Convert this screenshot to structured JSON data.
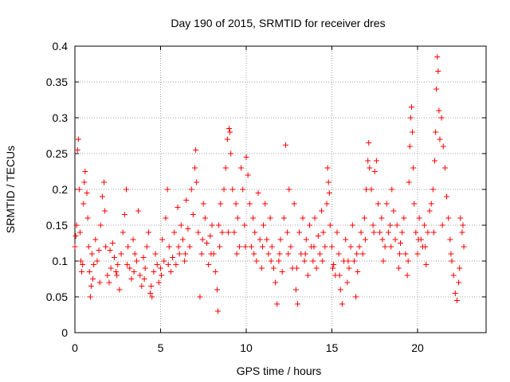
{
  "chart_data": {
    "type": "scatter",
    "title": "Day 190 of 2015, SRMTID for receiver dres",
    "xlabel": "GPS time / hours",
    "ylabel": "SRMTID / TECUs",
    "xlim": [
      0,
      24
    ],
    "ylim": [
      0,
      0.4
    ],
    "xticks": [
      0,
      5,
      10,
      15,
      20
    ],
    "xtick_labels": [
      "0",
      "5",
      "10",
      "15",
      "20"
    ],
    "yticks": [
      0,
      0.05,
      0.1,
      0.15,
      0.2,
      0.25,
      0.3,
      0.35,
      0.4
    ],
    "ytick_labels": [
      "0",
      "0.05",
      "0.1",
      "0.15",
      "0.2",
      "0.25",
      "0.3",
      "0.35",
      "0.4"
    ],
    "grid": true,
    "marker": "+",
    "color": "#ff0000",
    "series": [
      {
        "name": "SRMTID",
        "points": [
          [
            0.0,
            0.12
          ],
          [
            0.1,
            0.15
          ],
          [
            0.15,
            0.255
          ],
          [
            0.2,
            0.27
          ],
          [
            0.25,
            0.2
          ],
          [
            0.3,
            0.14
          ],
          [
            0.35,
            0.1
          ],
          [
            0.4,
            0.085
          ],
          [
            0.5,
            0.18
          ],
          [
            0.55,
            0.21
          ],
          [
            0.6,
            0.225
          ],
          [
            0.7,
            0.195
          ],
          [
            0.75,
            0.16
          ],
          [
            0.8,
            0.12
          ],
          [
            0.85,
            0.085
          ],
          [
            0.9,
            0.05
          ],
          [
            0.95,
            0.065
          ],
          [
            1.0,
            0.11
          ],
          [
            1.1,
            0.095
          ],
          [
            1.2,
            0.13
          ],
          [
            1.3,
            0.1
          ],
          [
            1.4,
            0.115
          ],
          [
            1.5,
            0.15
          ],
          [
            1.6,
            0.19
          ],
          [
            1.7,
            0.21
          ],
          [
            1.75,
            0.17
          ],
          [
            1.8,
            0.12
          ],
          [
            1.9,
            0.08
          ],
          [
            2.0,
            0.07
          ],
          [
            2.1,
            0.09
          ],
          [
            2.2,
            0.125
          ],
          [
            2.3,
            0.105
          ],
          [
            2.4,
            0.085
          ],
          [
            2.5,
            0.095
          ],
          [
            2.6,
            0.06
          ],
          [
            2.7,
            0.11
          ],
          [
            2.8,
            0.14
          ],
          [
            2.9,
            0.165
          ],
          [
            3.0,
            0.2
          ],
          [
            3.1,
            0.12
          ],
          [
            3.2,
            0.09
          ],
          [
            3.3,
            0.075
          ],
          [
            3.4,
            0.13
          ],
          [
            3.5,
            0.11
          ],
          [
            3.6,
            0.1
          ],
          [
            3.7,
            0.17
          ],
          [
            3.8,
            0.08
          ],
          [
            3.9,
            0.065
          ],
          [
            4.0,
            0.105
          ],
          [
            4.1,
            0.09
          ],
          [
            4.2,
            0.12
          ],
          [
            4.3,
            0.14
          ],
          [
            4.4,
            0.055
          ],
          [
            4.5,
            0.05
          ],
          [
            4.6,
            0.085
          ],
          [
            4.7,
            0.11
          ],
          [
            4.8,
            0.095
          ],
          [
            4.9,
            0.07
          ],
          [
            5.0,
            0.09
          ],
          [
            5.1,
            0.13
          ],
          [
            5.2,
            0.1
          ],
          [
            5.3,
            0.16
          ],
          [
            5.4,
            0.2
          ],
          [
            5.5,
            0.12
          ],
          [
            5.6,
            0.085
          ],
          [
            5.7,
            0.105
          ],
          [
            5.8,
            0.14
          ],
          [
            5.9,
            0.095
          ],
          [
            6.0,
            0.175
          ],
          [
            6.1,
            0.11
          ],
          [
            6.2,
            0.15
          ],
          [
            6.3,
            0.13
          ],
          [
            6.4,
            0.1
          ],
          [
            6.5,
            0.185
          ],
          [
            6.6,
            0.145
          ],
          [
            6.7,
            0.12
          ],
          [
            6.8,
            0.2
          ],
          [
            6.9,
            0.165
          ],
          [
            7.0,
            0.23
          ],
          [
            7.05,
            0.255
          ],
          [
            7.1,
            0.21
          ],
          [
            7.2,
            0.14
          ],
          [
            7.3,
            0.05
          ],
          [
            7.4,
            0.11
          ],
          [
            7.5,
            0.18
          ],
          [
            7.6,
            0.16
          ],
          [
            7.7,
            0.125
          ],
          [
            7.8,
            0.095
          ],
          [
            7.9,
            0.135
          ],
          [
            8.0,
            0.15
          ],
          [
            8.1,
            0.11
          ],
          [
            8.2,
            0.085
          ],
          [
            8.3,
            0.06
          ],
          [
            8.35,
            0.03
          ],
          [
            8.4,
            0.15
          ],
          [
            8.5,
            0.18
          ],
          [
            8.6,
            0.14
          ],
          [
            8.7,
            0.2
          ],
          [
            8.8,
            0.23
          ],
          [
            8.9,
            0.27
          ],
          [
            9.0,
            0.285
          ],
          [
            9.05,
            0.28
          ],
          [
            9.1,
            0.25
          ],
          [
            9.2,
            0.2
          ],
          [
            9.3,
            0.14
          ],
          [
            9.4,
            0.18
          ],
          [
            9.5,
            0.16
          ],
          [
            9.6,
            0.12
          ],
          [
            9.7,
            0.23
          ],
          [
            9.8,
            0.2
          ],
          [
            9.9,
            0.15
          ],
          [
            10.0,
            0.245
          ],
          [
            10.1,
            0.22
          ],
          [
            10.2,
            0.18
          ],
          [
            10.3,
            0.12
          ],
          [
            10.4,
            0.16
          ],
          [
            10.5,
            0.14
          ],
          [
            10.6,
            0.1
          ],
          [
            10.7,
            0.195
          ],
          [
            10.8,
            0.13
          ],
          [
            10.9,
            0.09
          ],
          [
            11.0,
            0.15
          ],
          [
            11.1,
            0.18
          ],
          [
            11.2,
            0.13
          ],
          [
            11.3,
            0.11
          ],
          [
            11.4,
            0.16
          ],
          [
            11.5,
            0.12
          ],
          [
            11.6,
            0.09
          ],
          [
            11.7,
            0.07
          ],
          [
            11.8,
            0.04
          ],
          [
            11.9,
            0.1
          ],
          [
            12.0,
            0.13
          ],
          [
            12.1,
            0.085
          ],
          [
            12.2,
            0.16
          ],
          [
            12.3,
            0.262
          ],
          [
            12.4,
            0.14
          ],
          [
            12.5,
            0.2
          ],
          [
            12.6,
            0.12
          ],
          [
            12.7,
            0.09
          ],
          [
            12.8,
            0.18
          ],
          [
            12.9,
            0.06
          ],
          [
            13.0,
            0.04
          ],
          [
            13.1,
            0.14
          ],
          [
            13.2,
            0.11
          ],
          [
            13.3,
            0.16
          ],
          [
            13.4,
            0.1
          ],
          [
            13.5,
            0.13
          ],
          [
            13.6,
            0.08
          ],
          [
            13.7,
            0.15
          ],
          [
            13.8,
            0.12
          ],
          [
            13.9,
            0.1
          ],
          [
            14.0,
            0.16
          ],
          [
            14.1,
            0.09
          ],
          [
            14.2,
            0.135
          ],
          [
            14.3,
            0.11
          ],
          [
            14.4,
            0.17
          ],
          [
            14.5,
            0.14
          ],
          [
            14.6,
            0.12
          ],
          [
            14.7,
            0.18
          ],
          [
            14.75,
            0.23
          ],
          [
            14.8,
            0.21
          ],
          [
            14.85,
            0.195
          ],
          [
            14.9,
            0.15
          ],
          [
            15.0,
            0.12
          ],
          [
            15.1,
            0.095
          ],
          [
            15.2,
            0.08
          ],
          [
            15.3,
            0.14
          ],
          [
            15.4,
            0.11
          ],
          [
            15.5,
            0.06
          ],
          [
            15.6,
            0.04
          ],
          [
            15.7,
            0.1
          ],
          [
            15.8,
            0.13
          ],
          [
            15.9,
            0.07
          ],
          [
            16.0,
            0.09
          ],
          [
            16.1,
            0.12
          ],
          [
            16.2,
            0.15
          ],
          [
            16.3,
            0.1
          ],
          [
            16.4,
            0.05
          ],
          [
            16.5,
            0.085
          ],
          [
            16.6,
            0.12
          ],
          [
            16.7,
            0.14
          ],
          [
            16.8,
            0.11
          ],
          [
            16.9,
            0.16
          ],
          [
            17.0,
            0.2
          ],
          [
            17.1,
            0.24
          ],
          [
            17.15,
            0.265
          ],
          [
            17.2,
            0.23
          ],
          [
            17.3,
            0.2
          ],
          [
            17.4,
            0.15
          ],
          [
            17.5,
            0.225
          ],
          [
            17.6,
            0.24
          ],
          [
            17.7,
            0.18
          ],
          [
            17.8,
            0.14
          ],
          [
            17.9,
            0.16
          ],
          [
            18.0,
            0.1
          ],
          [
            18.1,
            0.12
          ],
          [
            18.2,
            0.18
          ],
          [
            18.3,
            0.14
          ],
          [
            18.4,
            0.15
          ],
          [
            18.5,
            0.2
          ],
          [
            18.6,
            0.17
          ],
          [
            18.7,
            0.13
          ],
          [
            18.8,
            0.15
          ],
          [
            18.9,
            0.09
          ],
          [
            19.0,
            0.125
          ],
          [
            19.1,
            0.14
          ],
          [
            19.2,
            0.16
          ],
          [
            19.3,
            0.11
          ],
          [
            19.4,
            0.08
          ],
          [
            19.5,
            0.21
          ],
          [
            19.55,
            0.26
          ],
          [
            19.6,
            0.3
          ],
          [
            19.65,
            0.315
          ],
          [
            19.7,
            0.28
          ],
          [
            19.75,
            0.23
          ],
          [
            19.8,
            0.18
          ],
          [
            19.9,
            0.14
          ],
          [
            20.0,
            0.11
          ],
          [
            20.1,
            0.16
          ],
          [
            20.2,
            0.13
          ],
          [
            20.3,
            0.12
          ],
          [
            20.4,
            0.15
          ],
          [
            20.5,
            0.095
          ],
          [
            20.6,
            0.14
          ],
          [
            20.7,
            0.17
          ],
          [
            20.8,
            0.18
          ],
          [
            20.9,
            0.2
          ],
          [
            21.0,
            0.24
          ],
          [
            21.05,
            0.28
          ],
          [
            21.1,
            0.34
          ],
          [
            21.15,
            0.385
          ],
          [
            21.2,
            0.365
          ],
          [
            21.25,
            0.31
          ],
          [
            21.3,
            0.27
          ],
          [
            21.4,
            0.3
          ],
          [
            21.5,
            0.26
          ],
          [
            21.6,
            0.23
          ],
          [
            21.7,
            0.19
          ],
          [
            21.8,
            0.16
          ],
          [
            21.9,
            0.13
          ],
          [
            22.0,
            0.1
          ],
          [
            22.1,
            0.08
          ],
          [
            22.2,
            0.055
          ],
          [
            22.3,
            0.045
          ],
          [
            22.4,
            0.07
          ],
          [
            22.5,
            0.16
          ],
          [
            22.6,
            0.14
          ],
          [
            22.7,
            0.12
          ],
          [
            0.05,
            0.135
          ],
          [
            0.45,
            0.095
          ],
          [
            1.05,
            0.075
          ],
          [
            1.45,
            0.07
          ],
          [
            2.05,
            0.115
          ],
          [
            2.45,
            0.08
          ],
          [
            3.05,
            0.095
          ],
          [
            3.45,
            0.085
          ],
          [
            4.05,
            0.075
          ],
          [
            4.45,
            0.065
          ],
          [
            5.05,
            0.08
          ],
          [
            5.45,
            0.095
          ],
          [
            6.05,
            0.12
          ],
          [
            6.45,
            0.11
          ],
          [
            7.45,
            0.13
          ],
          [
            7.95,
            0.11
          ],
          [
            8.45,
            0.12
          ],
          [
            8.95,
            0.14
          ],
          [
            9.45,
            0.11
          ],
          [
            9.95,
            0.12
          ],
          [
            10.45,
            0.11
          ],
          [
            10.95,
            0.12
          ],
          [
            11.45,
            0.1
          ],
          [
            11.95,
            0.11
          ],
          [
            12.45,
            0.11
          ],
          [
            12.95,
            0.09
          ],
          [
            13.45,
            0.11
          ],
          [
            13.95,
            0.12
          ],
          [
            14.45,
            0.1
          ],
          [
            15.05,
            0.09
          ],
          [
            15.45,
            0.08
          ],
          [
            15.95,
            0.1
          ],
          [
            16.45,
            0.11
          ],
          [
            16.95,
            0.13
          ],
          [
            17.45,
            0.14
          ],
          [
            17.95,
            0.13
          ],
          [
            18.45,
            0.12
          ],
          [
            18.95,
            0.11
          ],
          [
            19.45,
            0.1
          ],
          [
            20.05,
            0.13
          ],
          [
            20.45,
            0.12
          ],
          [
            20.95,
            0.14
          ],
          [
            21.45,
            0.15
          ],
          [
            21.95,
            0.11
          ],
          [
            22.45,
            0.09
          ],
          [
            22.65,
            0.15
          ]
        ]
      }
    ]
  }
}
